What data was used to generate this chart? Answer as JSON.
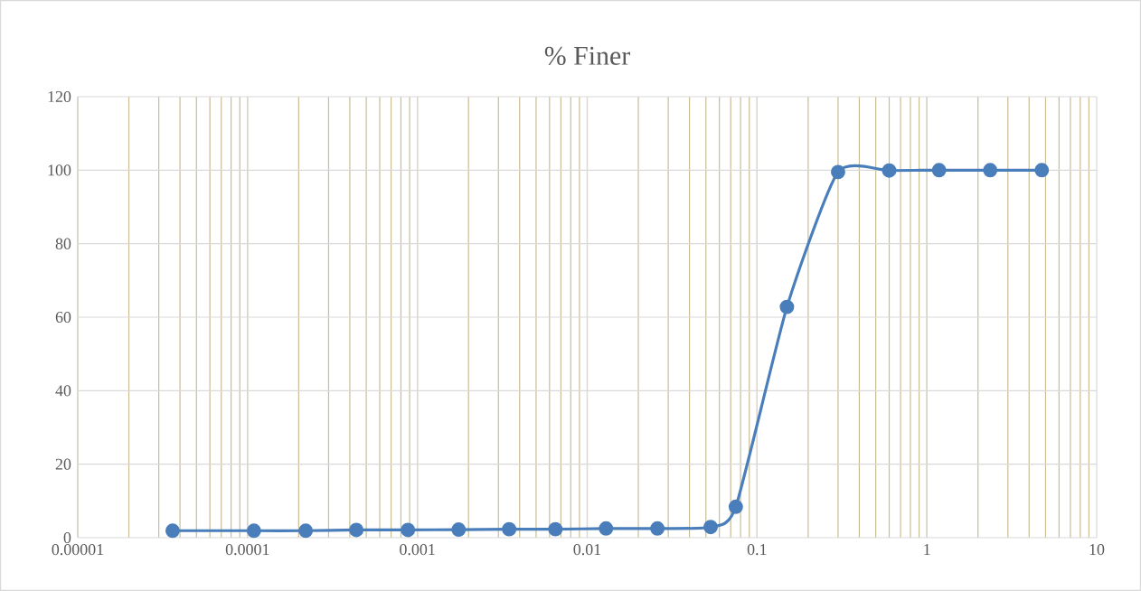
{
  "chart_data": {
    "type": "line",
    "title": "% Finer",
    "x": [
      3.62e-05,
      0.000109,
      0.00022,
      0.000437,
      0.00088,
      0.00175,
      0.00347,
      0.0065,
      0.0129,
      0.0259,
      0.0533,
      0.075,
      0.15,
      0.3,
      0.6,
      1.18,
      2.36,
      4.75
    ],
    "series": [
      {
        "color": "#4a7ebb",
        "values": [
          1.9,
          1.9,
          1.9,
          2.1,
          2.1,
          2.2,
          2.3,
          2.3,
          2.5,
          2.5,
          2.9,
          8.4,
          62.8,
          99.5,
          99.9,
          100,
          100,
          100
        ]
      }
    ],
    "log": "x",
    "marker": "circle",
    "line_style": "solid",
    "grid": true,
    "xlim": [
      1e-05,
      10
    ],
    "ylim": [
      0,
      120
    ],
    "xticks": [
      {
        "value": 1e-05,
        "label": "0.00001"
      },
      {
        "value": 0.0001,
        "label": "0.0001"
      },
      {
        "value": 0.001,
        "label": "0.001"
      },
      {
        "value": 0.01,
        "label": "0.01"
      },
      {
        "value": 0.1,
        "label": "0.1"
      },
      {
        "value": 1,
        "label": "1"
      },
      {
        "value": 10,
        "label": "10"
      }
    ],
    "yticks": [
      0,
      20,
      40,
      60,
      80,
      100,
      120
    ]
  }
}
